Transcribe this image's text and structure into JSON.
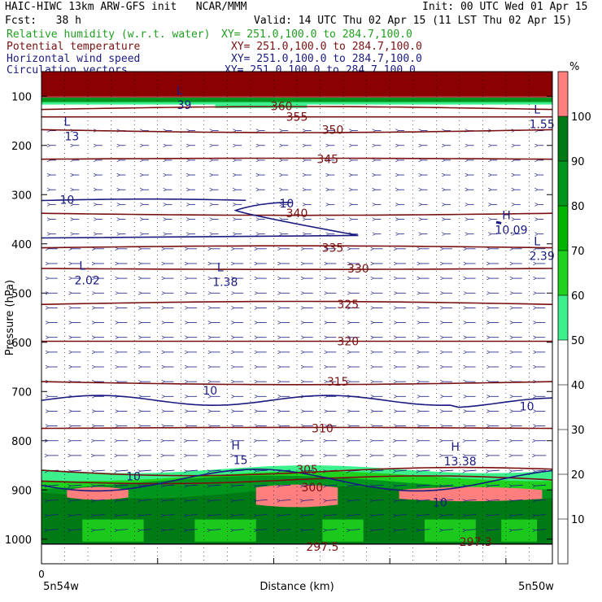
{
  "header": {
    "title_left": "HAIC-HIWC 13km ARW-GFS init   NCAR/MMM",
    "init": "Init: 00 UTC Wed 01 Apr 15",
    "fcst": "Fcst:   38 h",
    "valid": "Valid: 14 UTC Thu 02 Apr 15 (11 LST Thu 02 Apr 15)",
    "fields": [
      {
        "name": "Relative humidity (w.r.t. water)",
        "xy": "XY= 251.0,100.0 to 284.7,100.0",
        "color": "#1f9e1f"
      },
      {
        "name": "Potential temperature",
        "xy": "XY= 251.0,100.0 to 284.7,100.0",
        "color": "#7a1010"
      },
      {
        "name": "Horizontal wind speed",
        "xy": "XY= 251.0,100.0 to 284.7,100.0",
        "color": "#1a1a80"
      },
      {
        "name": "Circulation vectors",
        "xy": "XY= 251.0,100.0 to 284.7,100.0",
        "color": "#1a1a80"
      }
    ]
  },
  "chart_data": {
    "type": "cross-section",
    "ylabel": "Pressure (hPa)",
    "xlabel": "Distance (km)",
    "yticks": [
      100,
      200,
      300,
      400,
      500,
      600,
      700,
      800,
      900,
      1000
    ],
    "ylim": [
      50,
      1050
    ],
    "x_tick_left": "0",
    "x_endpoint_left": "5n54w",
    "x_endpoint_right": "5n50w",
    "colorbar": {
      "unit": "%",
      "levels": [
        10,
        20,
        30,
        40,
        50,
        60,
        70,
        80,
        90,
        100
      ],
      "colors": [
        "#ffffff",
        "#ffffff",
        "#ffffff",
        "#ffffff",
        "#ffffff",
        "#3cf08c",
        "#1ed21e",
        "#00b400",
        "#00961e",
        "#007a14",
        "#ff7f7f"
      ]
    },
    "theta_contours": [
      {
        "value": 360,
        "p": 127
      },
      {
        "value": 355,
        "p": 142
      },
      {
        "value": 350,
        "p": 168
      },
      {
        "value": 345,
        "p": 228
      },
      {
        "value": 340,
        "p": 338
      },
      {
        "value": 335,
        "p": 408
      },
      {
        "value": 330,
        "p": 450
      },
      {
        "value": 325,
        "p": 523
      },
      {
        "value": 320,
        "p": 598
      },
      {
        "value": 315,
        "p": 680
      },
      {
        "value": 310,
        "p": 775
      },
      {
        "value": 305,
        "p": 860
      },
      {
        "value": 300,
        "p": 882
      }
    ],
    "theta_labels": [
      {
        "text": "360",
        "x": 0.47,
        "p": 120
      },
      {
        "text": "355",
        "x": 0.5,
        "p": 142
      },
      {
        "text": "350",
        "x": 0.57,
        "p": 168
      },
      {
        "text": "345",
        "x": 0.56,
        "p": 228
      },
      {
        "text": "340",
        "x": 0.5,
        "p": 338
      },
      {
        "text": "335",
        "x": 0.57,
        "p": 408
      },
      {
        "text": "330",
        "x": 0.62,
        "p": 450
      },
      {
        "text": "325",
        "x": 0.6,
        "p": 523
      },
      {
        "text": "320",
        "x": 0.6,
        "p": 598
      },
      {
        "text": "315",
        "x": 0.58,
        "p": 680
      },
      {
        "text": "310",
        "x": 0.55,
        "p": 775
      },
      {
        "text": "305",
        "x": 0.52,
        "p": 858
      },
      {
        "text": "300",
        "x": 0.53,
        "p": 895
      },
      {
        "text": "297.5",
        "x": 0.55,
        "p": 1015
      },
      {
        "text": "297.3",
        "x": 0.85,
        "p": 1005
      }
    ],
    "wind_labels": [
      {
        "text": "10",
        "x": 0.05,
        "p": 310
      },
      {
        "text": "10",
        "x": 0.48,
        "p": 318
      },
      {
        "text": "10",
        "x": 0.33,
        "p": 698
      },
      {
        "text": "10",
        "x": 0.95,
        "p": 730
      },
      {
        "text": "10",
        "x": 0.18,
        "p": 872
      },
      {
        "text": "10",
        "x": 0.78,
        "p": 925
      }
    ],
    "extrema": [
      {
        "type": "L",
        "value": "39",
        "x": 0.27,
        "p": 106
      },
      {
        "type": "L",
        "value": "13",
        "x": 0.05,
        "p": 170
      },
      {
        "type": "L",
        "value": "1.55",
        "x": 0.97,
        "p": 145
      },
      {
        "type": "H",
        "value": "10.09",
        "x": 0.91,
        "p": 360
      },
      {
        "type": "L",
        "value": "2.39",
        "x": 0.97,
        "p": 413
      },
      {
        "type": "L",
        "value": "2.02",
        "x": 0.08,
        "p": 462
      },
      {
        "type": "L",
        "value": "1.38",
        "x": 0.35,
        "p": 466
      },
      {
        "type": "H",
        "value": "15",
        "x": 0.38,
        "p": 828
      },
      {
        "type": "H",
        "value": "13.38",
        "x": 0.81,
        "p": 830
      }
    ]
  }
}
